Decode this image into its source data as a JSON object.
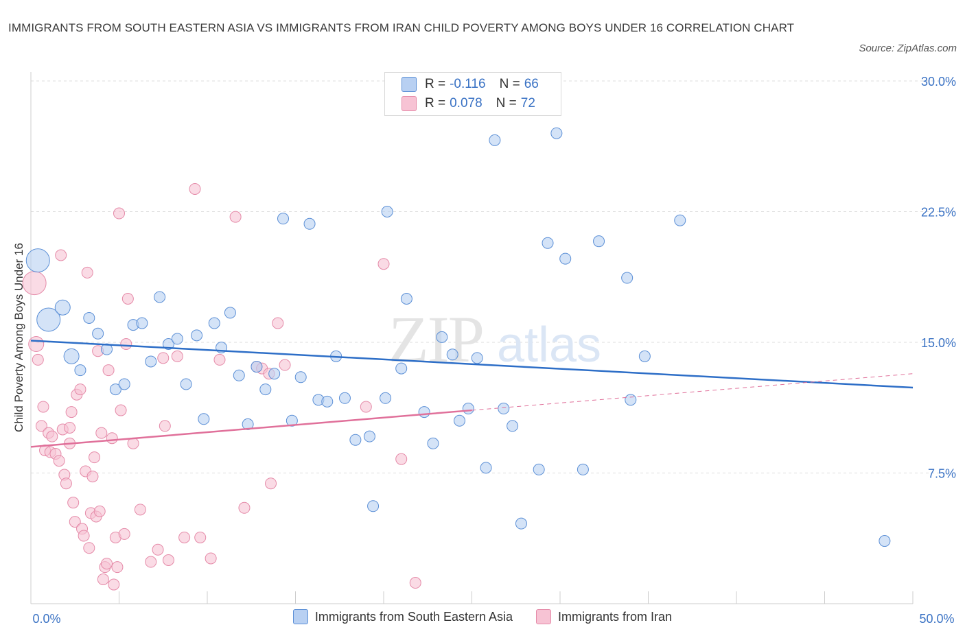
{
  "header": {
    "title": "IMMIGRANTS FROM SOUTH EASTERN ASIA VS IMMIGRANTS FROM IRAN CHILD POVERTY AMONG BOYS UNDER 16 CORRELATION CHART",
    "source": "Source: ZipAtlas.com"
  },
  "watermark": {
    "big": "ZIP",
    "small": "atlas"
  },
  "colors": {
    "blue_fill": "#b8d0f2",
    "blue_stroke": "#5b8fd6",
    "blue_line": "#2d6ec7",
    "pink_fill": "#f7c3d4",
    "pink_stroke": "#e58aa8",
    "pink_line": "#e0709a",
    "axis_text": "#3a72c4",
    "grid": "#dddddd"
  },
  "legend_top": {
    "rows": [
      {
        "r_label": "R =",
        "r_value": "-0.116",
        "n_label": "N =",
        "n_value": "66",
        "color": "#b8d0f2"
      },
      {
        "r_label": "R =",
        "r_value": "0.078",
        "n_label": "N =",
        "n_value": "72",
        "color": "#f7c3d4"
      }
    ]
  },
  "chart_data": {
    "type": "scatter",
    "title": "IMMIGRANTS FROM SOUTH EASTERN ASIA VS IMMIGRANTS FROM IRAN CHILD POVERTY AMONG BOYS UNDER 16 CORRELATION CHART",
    "xlabel": "",
    "ylabel": "Child Poverty Among Boys Under 16",
    "xlim": [
      0,
      50
    ],
    "ylim": [
      0,
      30
    ],
    "x_tick_labels": [
      "0.0%",
      "50.0%"
    ],
    "y_ticks": [
      7.5,
      15.0,
      22.5,
      30.0
    ],
    "y_tick_labels": [
      "7.5%",
      "15.0%",
      "22.5%",
      "30.0%"
    ],
    "grid": "horizontal dashed",
    "legend_placement": "bottom",
    "series": [
      {
        "name": "Immigrants from South Eastern Asia",
        "color": "#b8d0f2",
        "trend": {
          "x": [
            0,
            50
          ],
          "y": [
            15.1,
            12.4
          ]
        },
        "points": [
          {
            "x": 0.4,
            "y": 19.7,
            "s": 3
          },
          {
            "x": 1.0,
            "y": 16.3,
            "s": 3
          },
          {
            "x": 1.8,
            "y": 17.0,
            "s": 2
          },
          {
            "x": 2.3,
            "y": 14.2,
            "s": 2
          },
          {
            "x": 2.8,
            "y": 13.4,
            "s": 1
          },
          {
            "x": 3.3,
            "y": 16.4,
            "s": 1
          },
          {
            "x": 3.8,
            "y": 15.5,
            "s": 1
          },
          {
            "x": 4.3,
            "y": 14.6,
            "s": 1
          },
          {
            "x": 4.8,
            "y": 12.3,
            "s": 1
          },
          {
            "x": 5.3,
            "y": 12.6,
            "s": 1
          },
          {
            "x": 5.8,
            "y": 16.0,
            "s": 1
          },
          {
            "x": 6.3,
            "y": 16.1,
            "s": 1
          },
          {
            "x": 6.8,
            "y": 13.9,
            "s": 1
          },
          {
            "x": 7.3,
            "y": 17.6,
            "s": 1
          },
          {
            "x": 7.8,
            "y": 14.9,
            "s": 1
          },
          {
            "x": 8.3,
            "y": 15.2,
            "s": 1
          },
          {
            "x": 8.8,
            "y": 12.6,
            "s": 1
          },
          {
            "x": 9.4,
            "y": 15.4,
            "s": 1
          },
          {
            "x": 9.8,
            "y": 10.6,
            "s": 1
          },
          {
            "x": 10.4,
            "y": 16.1,
            "s": 1
          },
          {
            "x": 10.8,
            "y": 14.7,
            "s": 1
          },
          {
            "x": 11.3,
            "y": 16.7,
            "s": 1
          },
          {
            "x": 11.8,
            "y": 13.1,
            "s": 1
          },
          {
            "x": 12.3,
            "y": 10.3,
            "s": 1
          },
          {
            "x": 12.8,
            "y": 13.6,
            "s": 1
          },
          {
            "x": 13.3,
            "y": 12.3,
            "s": 1
          },
          {
            "x": 13.8,
            "y": 13.2,
            "s": 1
          },
          {
            "x": 14.3,
            "y": 22.1,
            "s": 1
          },
          {
            "x": 14.8,
            "y": 10.5,
            "s": 1
          },
          {
            "x": 15.3,
            "y": 13.0,
            "s": 1
          },
          {
            "x": 15.8,
            "y": 21.8,
            "s": 1
          },
          {
            "x": 16.3,
            "y": 11.7,
            "s": 1
          },
          {
            "x": 16.8,
            "y": 11.6,
            "s": 1
          },
          {
            "x": 17.3,
            "y": 14.2,
            "s": 1
          },
          {
            "x": 17.8,
            "y": 11.8,
            "s": 1
          },
          {
            "x": 18.4,
            "y": 9.4,
            "s": 1
          },
          {
            "x": 19.2,
            "y": 9.6,
            "s": 1
          },
          {
            "x": 19.4,
            "y": 5.6,
            "s": 1
          },
          {
            "x": 20.1,
            "y": 11.8,
            "s": 1
          },
          {
            "x": 20.2,
            "y": 22.5,
            "s": 1
          },
          {
            "x": 21.0,
            "y": 13.5,
            "s": 1
          },
          {
            "x": 21.3,
            "y": 17.5,
            "s": 1
          },
          {
            "x": 22.3,
            "y": 11.0,
            "s": 1
          },
          {
            "x": 22.8,
            "y": 9.2,
            "s": 1
          },
          {
            "x": 23.3,
            "y": 15.3,
            "s": 1
          },
          {
            "x": 23.9,
            "y": 14.3,
            "s": 1
          },
          {
            "x": 24.3,
            "y": 10.5,
            "s": 1
          },
          {
            "x": 24.8,
            "y": 11.2,
            "s": 1
          },
          {
            "x": 25.3,
            "y": 14.1,
            "s": 1
          },
          {
            "x": 25.8,
            "y": 7.8,
            "s": 1
          },
          {
            "x": 26.3,
            "y": 26.6,
            "s": 1
          },
          {
            "x": 26.8,
            "y": 11.2,
            "s": 1
          },
          {
            "x": 27.3,
            "y": 10.2,
            "s": 1
          },
          {
            "x": 27.8,
            "y": 4.6,
            "s": 1
          },
          {
            "x": 28.8,
            "y": 7.7,
            "s": 1
          },
          {
            "x": 29.3,
            "y": 20.7,
            "s": 1
          },
          {
            "x": 29.8,
            "y": 27.0,
            "s": 1
          },
          {
            "x": 30.3,
            "y": 19.8,
            "s": 1
          },
          {
            "x": 31.3,
            "y": 7.7,
            "s": 1
          },
          {
            "x": 32.2,
            "y": 20.8,
            "s": 1
          },
          {
            "x": 33.8,
            "y": 18.7,
            "s": 1
          },
          {
            "x": 34.0,
            "y": 11.7,
            "s": 1
          },
          {
            "x": 34.8,
            "y": 14.2,
            "s": 1
          },
          {
            "x": 36.8,
            "y": 22.0,
            "s": 1
          },
          {
            "x": 48.4,
            "y": 3.6,
            "s": 1
          },
          {
            "x": 24.0,
            "y": 13.3,
            "s": 0
          }
        ]
      },
      {
        "name": "Immigrants from Iran",
        "color": "#f7c3d4",
        "trend": {
          "x": [
            0,
            25
          ],
          "y": [
            9.0,
            11.1
          ]
        },
        "trend_ext": {
          "x": [
            25,
            50
          ],
          "y": [
            11.1,
            13.2
          ]
        },
        "points": [
          {
            "x": 0.2,
            "y": 18.4,
            "s": 3
          },
          {
            "x": 0.3,
            "y": 14.9,
            "s": 2
          },
          {
            "x": 0.4,
            "y": 14.0,
            "s": 1
          },
          {
            "x": 0.6,
            "y": 10.2,
            "s": 1
          },
          {
            "x": 0.7,
            "y": 11.3,
            "s": 1
          },
          {
            "x": 0.8,
            "y": 8.8,
            "s": 1
          },
          {
            "x": 1.0,
            "y": 9.8,
            "s": 1
          },
          {
            "x": 1.1,
            "y": 8.7,
            "s": 1
          },
          {
            "x": 1.2,
            "y": 9.6,
            "s": 1
          },
          {
            "x": 1.4,
            "y": 8.6,
            "s": 1
          },
          {
            "x": 1.6,
            "y": 8.2,
            "s": 1
          },
          {
            "x": 1.7,
            "y": 20.0,
            "s": 1
          },
          {
            "x": 1.8,
            "y": 10.0,
            "s": 1
          },
          {
            "x": 1.9,
            "y": 7.4,
            "s": 1
          },
          {
            "x": 2.0,
            "y": 6.9,
            "s": 1
          },
          {
            "x": 2.2,
            "y": 10.1,
            "s": 1
          },
          {
            "x": 2.2,
            "y": 9.2,
            "s": 1
          },
          {
            "x": 2.3,
            "y": 11.0,
            "s": 1
          },
          {
            "x": 2.4,
            "y": 5.8,
            "s": 1
          },
          {
            "x": 2.5,
            "y": 4.7,
            "s": 1
          },
          {
            "x": 2.6,
            "y": 12.0,
            "s": 1
          },
          {
            "x": 2.8,
            "y": 12.3,
            "s": 1
          },
          {
            "x": 2.9,
            "y": 4.3,
            "s": 1
          },
          {
            "x": 3.0,
            "y": 3.9,
            "s": 1
          },
          {
            "x": 3.1,
            "y": 7.6,
            "s": 1
          },
          {
            "x": 3.2,
            "y": 19.0,
            "s": 1
          },
          {
            "x": 3.3,
            "y": 3.2,
            "s": 1
          },
          {
            "x": 3.4,
            "y": 5.2,
            "s": 1
          },
          {
            "x": 3.5,
            "y": 7.3,
            "s": 1
          },
          {
            "x": 3.6,
            "y": 8.4,
            "s": 1
          },
          {
            "x": 3.7,
            "y": 5.0,
            "s": 1
          },
          {
            "x": 3.8,
            "y": 14.5,
            "s": 1
          },
          {
            "x": 3.9,
            "y": 5.3,
            "s": 1
          },
          {
            "x": 4.0,
            "y": 9.8,
            "s": 1
          },
          {
            "x": 4.1,
            "y": 1.4,
            "s": 1
          },
          {
            "x": 4.2,
            "y": 2.1,
            "s": 1
          },
          {
            "x": 4.3,
            "y": 2.3,
            "s": 1
          },
          {
            "x": 4.4,
            "y": 13.4,
            "s": 1
          },
          {
            "x": 4.6,
            "y": 9.5,
            "s": 1
          },
          {
            "x": 4.7,
            "y": 1.1,
            "s": 1
          },
          {
            "x": 4.8,
            "y": 3.8,
            "s": 1
          },
          {
            "x": 4.9,
            "y": 2.1,
            "s": 1
          },
          {
            "x": 5.0,
            "y": 22.4,
            "s": 1
          },
          {
            "x": 5.1,
            "y": 11.1,
            "s": 1
          },
          {
            "x": 5.3,
            "y": 4.0,
            "s": 1
          },
          {
            "x": 5.4,
            "y": 14.9,
            "s": 1
          },
          {
            "x": 5.5,
            "y": 17.5,
            "s": 1
          },
          {
            "x": 5.8,
            "y": 9.2,
            "s": 1
          },
          {
            "x": 6.2,
            "y": 5.4,
            "s": 1
          },
          {
            "x": 6.8,
            "y": 2.4,
            "s": 1
          },
          {
            "x": 7.2,
            "y": 3.1,
            "s": 1
          },
          {
            "x": 7.5,
            "y": 14.1,
            "s": 1
          },
          {
            "x": 7.6,
            "y": 10.2,
            "s": 1
          },
          {
            "x": 7.8,
            "y": 2.5,
            "s": 1
          },
          {
            "x": 8.3,
            "y": 14.2,
            "s": 1
          },
          {
            "x": 8.7,
            "y": 3.8,
            "s": 1
          },
          {
            "x": 9.3,
            "y": 23.8,
            "s": 1
          },
          {
            "x": 9.6,
            "y": 3.8,
            "s": 1
          },
          {
            "x": 10.2,
            "y": 2.6,
            "s": 1
          },
          {
            "x": 10.7,
            "y": 14.0,
            "s": 1
          },
          {
            "x": 11.6,
            "y": 22.2,
            "s": 1
          },
          {
            "x": 12.1,
            "y": 5.5,
            "s": 1
          },
          {
            "x": 12.8,
            "y": 13.6,
            "s": 1
          },
          {
            "x": 13.1,
            "y": 13.5,
            "s": 1
          },
          {
            "x": 13.5,
            "y": 13.2,
            "s": 1
          },
          {
            "x": 13.6,
            "y": 6.9,
            "s": 1
          },
          {
            "x": 14.0,
            "y": 16.1,
            "s": 1
          },
          {
            "x": 14.4,
            "y": 13.7,
            "s": 1
          },
          {
            "x": 19.0,
            "y": 11.3,
            "s": 1
          },
          {
            "x": 20.0,
            "y": 19.5,
            "s": 1
          },
          {
            "x": 21.0,
            "y": 8.3,
            "s": 1
          },
          {
            "x": 21.8,
            "y": 1.2,
            "s": 1
          }
        ]
      }
    ]
  }
}
